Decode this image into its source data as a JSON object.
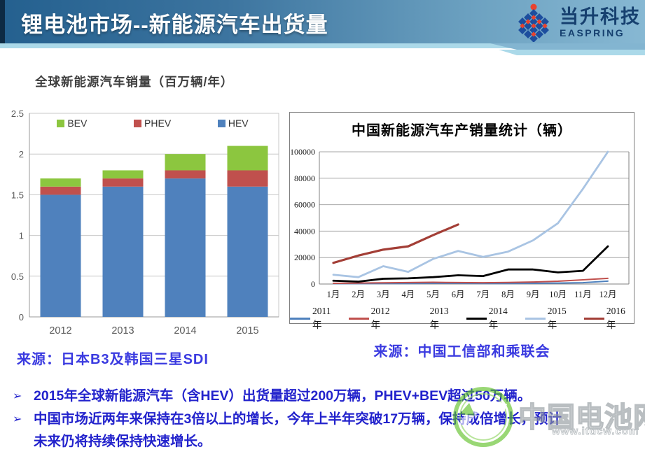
{
  "header": {
    "title": "锂电池市场--新能源汽车出货量",
    "logo_cn": "当升科技",
    "logo_en": "EASPRING"
  },
  "bullet_char": "➢",
  "bullets": [
    "2015年全球新能源汽车（含HEV）出货量超过200万辆，PHEV+BEV超过50万辆。",
    "中国市场近两年来保持在3倍以上的增长，今年上半年突破17万辆，保持成倍增长，预计未来仍将持续保持快速增长。"
  ],
  "watermark": {
    "text": "中国电池网",
    "url": "www.itdcw.com"
  },
  "colors": {
    "header_left": "#24608f",
    "header_right": "#87b8d3",
    "strip_light_blue": "#abd9e9",
    "logo_navy": "#16406f",
    "blue_text": "#2222cc",
    "grid_gray": "#c8c8c8"
  },
  "chart_data": [
    {
      "type": "bar",
      "stacked": true,
      "title": "全球新能源汽车销量（百万辆/年）",
      "categories": [
        "2012",
        "2013",
        "2014",
        "2015"
      ],
      "series": [
        {
          "name": "BEV",
          "color": "#8cc63f",
          "values": [
            0.1,
            0.1,
            0.2,
            0.3
          ]
        },
        {
          "name": "PHEV",
          "color": "#c0504d",
          "values": [
            0.1,
            0.1,
            0.1,
            0.2
          ]
        },
        {
          "name": "HEV",
          "color": "#4f81bd",
          "values": [
            1.5,
            1.6,
            1.7,
            1.6
          ]
        }
      ],
      "ylim": [
        0,
        2.5
      ],
      "yticks": [
        0,
        0.5,
        1,
        1.5,
        2,
        2.5
      ],
      "grid": true,
      "legend_position": "top-inside",
      "source": "来源：日本B3及韩国三星SDI"
    },
    {
      "type": "line",
      "title": "中国新能源汽车产销量统计（辆）",
      "x": [
        "1月",
        "2月",
        "3月",
        "4月",
        "5月",
        "6月",
        "7月",
        "8月",
        "9月",
        "10月",
        "11月",
        "12月"
      ],
      "series": [
        {
          "name": "2011年",
          "color": "#4f81bd",
          "width": 2,
          "values": [
            300,
            300,
            400,
            400,
            500,
            500,
            400,
            400,
            500,
            700,
            1000,
            2200
          ]
        },
        {
          "name": "2012年",
          "color": "#c0504d",
          "width": 2,
          "values": [
            500,
            700,
            900,
            1100,
            1300,
            1100,
            1000,
            1200,
            1500,
            2100,
            3200,
            4300
          ]
        },
        {
          "name": "2013年",
          "color": "#ffffff",
          "width": 2,
          "values": []
        },
        {
          "name": "2014年",
          "color": "#000000",
          "width": 2.8,
          "values": [
            2500,
            1800,
            4000,
            4300,
            5200,
            6600,
            6000,
            11000,
            11000,
            8800,
            10000,
            28500
          ]
        },
        {
          "name": "2015年",
          "color": "#a9c4e3",
          "width": 2.8,
          "values": [
            7000,
            5200,
            13500,
            9200,
            19000,
            25000,
            20500,
            24500,
            33000,
            46000,
            72000,
            100000
          ]
        },
        {
          "name": "2016年",
          "color": "#a33e36",
          "width": 3.2,
          "values": [
            16000,
            21500,
            26000,
            28500,
            37000,
            45000,
            null,
            null,
            null,
            null,
            null,
            null
          ]
        }
      ],
      "ylim": [
        0,
        100000
      ],
      "yticks": [
        0,
        20000,
        40000,
        60000,
        80000,
        100000
      ],
      "grid": true,
      "legend_position": "bottom",
      "source": "来源：中国工信部和乘联会"
    }
  ]
}
